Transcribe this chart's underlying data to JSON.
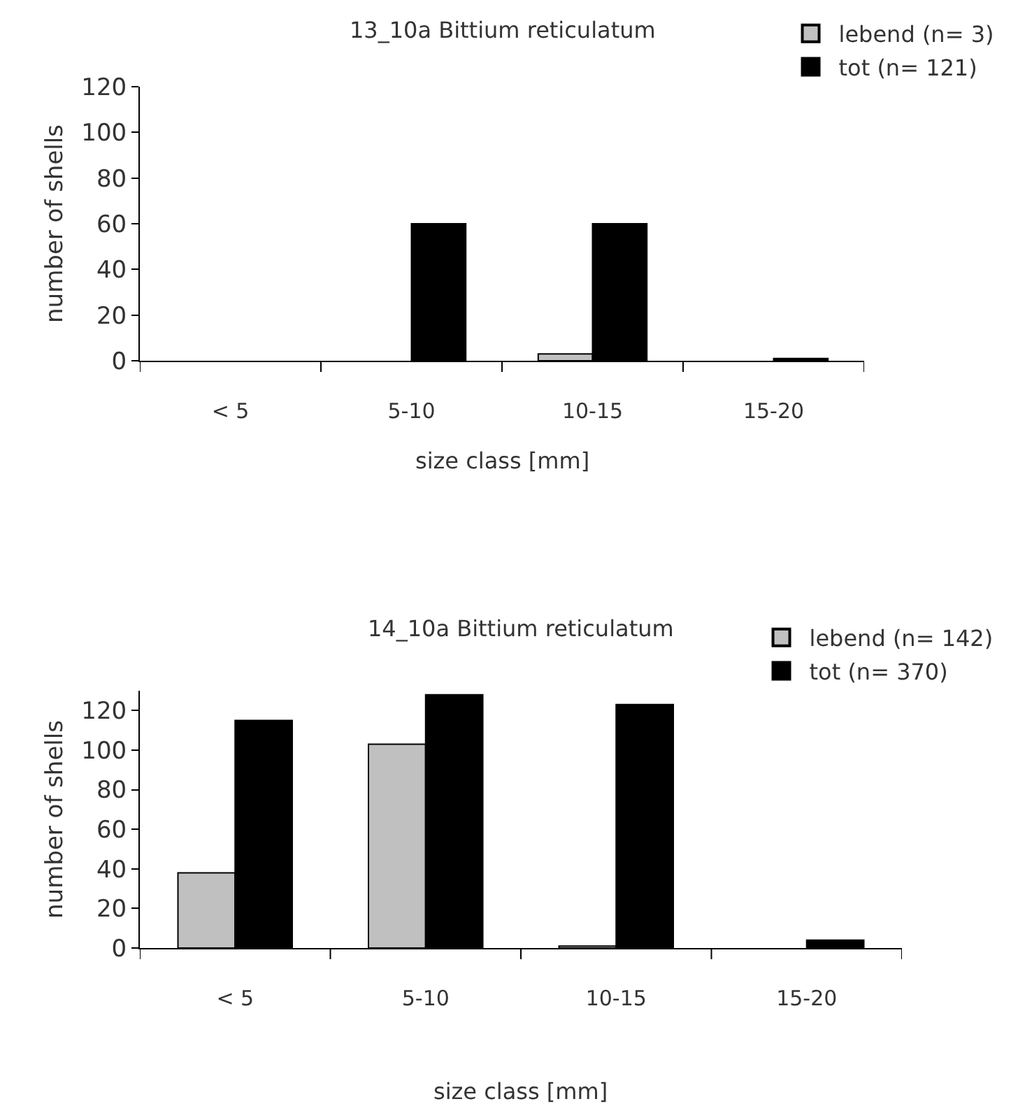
{
  "chart_data": [
    {
      "type": "bar",
      "title": "13_10a Bittium reticulatum",
      "xlabel": "size class [mm]",
      "ylabel": "number of shells",
      "categories": [
        "< 5",
        "5-10",
        "10-15",
        "15-20"
      ],
      "series": [
        {
          "name": "lebend (n= 3)",
          "color": "#c0c0c0",
          "values": [
            0,
            0,
            3,
            0
          ]
        },
        {
          "name": "tot (n= 121)",
          "color": "#000000",
          "values": [
            0,
            60,
            60,
            1
          ]
        }
      ],
      "ylim": [
        0,
        120
      ],
      "yticks": [
        0,
        20,
        40,
        60,
        80,
        100,
        120
      ],
      "legend": "top right"
    },
    {
      "type": "bar",
      "title": "14_10a Bittium reticulatum",
      "xlabel": "size class [mm]",
      "ylabel": "number of shells",
      "categories": [
        "< 5",
        "5-10",
        "10-15",
        "15-20"
      ],
      "series": [
        {
          "name": "lebend (n= 142)",
          "color": "#c0c0c0",
          "values": [
            38,
            103,
            1,
            0
          ]
        },
        {
          "name": "tot (n= 370)",
          "color": "#000000",
          "values": [
            115,
            128,
            123,
            4
          ]
        }
      ],
      "ylim": [
        0,
        130
      ],
      "yticks": [
        0,
        20,
        40,
        60,
        80,
        100,
        120
      ],
      "legend": "top right"
    }
  ]
}
